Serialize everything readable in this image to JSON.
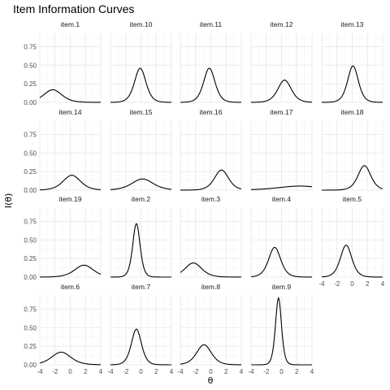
{
  "chart_data": {
    "type": "line",
    "title": "Item Information Curves",
    "xlabel": "θ",
    "ylabel": "I(θ)",
    "xlim": [
      -4,
      4
    ],
    "ylim": [
      0,
      0.93
    ],
    "x_ticks": [
      -4,
      -2,
      0,
      2,
      4
    ],
    "y_ticks": [
      0.0,
      0.25,
      0.5,
      0.75
    ],
    "y_tick_labels": [
      "0.00",
      "0.25",
      "0.50",
      "0.75"
    ],
    "grid": true,
    "ncol": 5,
    "series": [
      {
        "name": "item.1",
        "peak": 0.17,
        "location": -2.3,
        "scale": 1.35
      },
      {
        "name": "item.10",
        "peak": 0.46,
        "location": -0.1,
        "scale": 0.85
      },
      {
        "name": "item.11",
        "peak": 0.46,
        "location": -0.2,
        "scale": 0.85
      },
      {
        "name": "item.12",
        "peak": 0.3,
        "location": 0.4,
        "scale": 1.0
      },
      {
        "name": "item.13",
        "peak": 0.49,
        "location": 0.1,
        "scale": 0.8
      },
      {
        "name": "item.14",
        "peak": 0.2,
        "location": 0.2,
        "scale": 1.3
      },
      {
        "name": "item.15",
        "peak": 0.15,
        "location": 0.2,
        "scale": 1.6
      },
      {
        "name": "item.16",
        "peak": 0.27,
        "location": 1.4,
        "scale": 1.05
      },
      {
        "name": "item.17",
        "peak": 0.055,
        "location": 2.4,
        "scale": 3.2
      },
      {
        "name": "item.18",
        "peak": 0.33,
        "location": 1.6,
        "scale": 0.95
      },
      {
        "name": "item.19",
        "peak": 0.16,
        "location": 1.8,
        "scale": 1.4
      },
      {
        "name": "item.2",
        "peak": 0.72,
        "location": -0.6,
        "scale": 0.55
      },
      {
        "name": "item.3",
        "peak": 0.19,
        "location": -2.3,
        "scale": 1.25
      },
      {
        "name": "item.4",
        "peak": 0.4,
        "location": -0.9,
        "scale": 0.9
      },
      {
        "name": "item.5",
        "peak": 0.43,
        "location": -0.8,
        "scale": 0.85
      },
      {
        "name": "item.6",
        "peak": 0.17,
        "location": -1.2,
        "scale": 1.45
      },
      {
        "name": "item.7",
        "peak": 0.48,
        "location": -0.6,
        "scale": 0.75
      },
      {
        "name": "item.8",
        "peak": 0.27,
        "location": -0.9,
        "scale": 1.1
      },
      {
        "name": "item.9",
        "peak": 0.9,
        "location": -0.4,
        "scale": 0.45
      }
    ]
  }
}
